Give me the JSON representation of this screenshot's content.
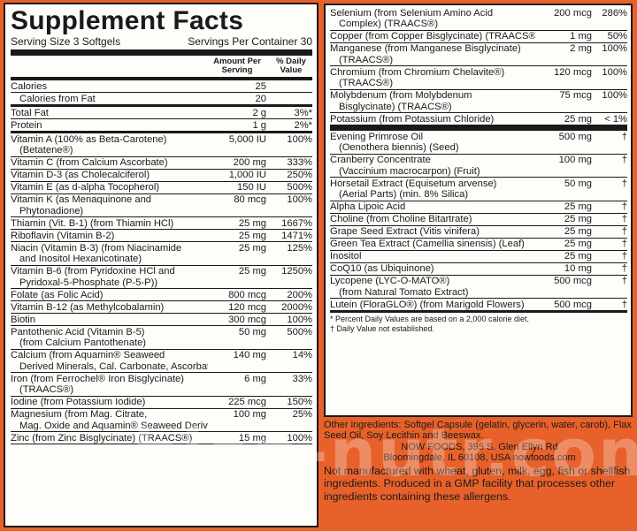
{
  "label": {
    "title": "Supplement Facts",
    "serving_size": "Serving Size 3 Softgels",
    "servings_per_container": "Servings Per Container 30",
    "col_amount": "Amount Per Serving",
    "col_dv": "% Daily Value"
  },
  "left_rows": [
    {
      "name": "Calories",
      "amount": "25",
      "dv": ""
    },
    {
      "name": "Calories from Fat",
      "amount": "20",
      "dv": "",
      "indent": true,
      "thick": true
    },
    {
      "name": "Total Fat",
      "amount": "2 g",
      "dv": "3%*"
    },
    {
      "name": "Protein",
      "amount": "1 g",
      "dv": "2%*",
      "thick": true
    },
    {
      "name": "Vitamin A (100% as Beta-Carotene)",
      "name2": "(Betatene®)",
      "amount": "5,000 IU",
      "dv": "100%"
    },
    {
      "name": "Vitamin C (from Calcium Ascorbate)",
      "amount": "200 mg",
      "dv": "333%"
    },
    {
      "name": "Vitamin D-3 (as Cholecalciferol)",
      "amount": "1,000 IU",
      "dv": "250%"
    },
    {
      "name": "Vitamin E (as d-alpha Tocopherol)",
      "amount": "150 IU",
      "dv": "500%"
    },
    {
      "name": "Vitamin K (as Menaquinone and",
      "name2": "Phytonadione)",
      "amount": "80 mcg",
      "dv": "100%"
    },
    {
      "name": "Thiamin (Vit. B-1) (from Thiamin HCl)",
      "amount": "25 mg",
      "dv": "1667%"
    },
    {
      "name": "Riboflavin (Vitamin B-2)",
      "amount": "25 mg",
      "dv": "1471%"
    },
    {
      "name": "Niacin (Vitamin B-3) (from Niacinamide",
      "name2": "and Inositol Hexanicotinate)",
      "amount": "25 mg",
      "dv": "125%"
    },
    {
      "name": "Vitamin B-6 (from Pyridoxine HCl and",
      "name2": "Pyridoxal-5-Phosphate (P-5-P))",
      "amount": "25 mg",
      "dv": "1250%"
    },
    {
      "name": "Folate (as Folic Acid)",
      "amount": "800 mcg",
      "dv": "200%"
    },
    {
      "name": "Vitamin B-12 (as Methylcobalamin)",
      "amount": "120 mcg",
      "dv": "2000%"
    },
    {
      "name": "Biotin",
      "amount": "300 mcg",
      "dv": "100%"
    },
    {
      "name": "Pantothenic Acid (Vitamin B-5)",
      "name2": "(from Calcium Pantothenate)",
      "amount": "50 mg",
      "dv": "500%"
    },
    {
      "name": "Calcium (from Aquamin® Seaweed",
      "name2": "Derived Minerals, Cal. Carbonate, Ascorbate, Pantothenate)",
      "amount": "140 mg",
      "dv": "14%"
    },
    {
      "name": "Iron (from Ferrochel® Iron Bisglycinate)",
      "name2": "(TRAACS®)",
      "amount": "6 mg",
      "dv": "33%"
    },
    {
      "name": "Iodine (from Potassium Iodide)",
      "amount": "225 mcg",
      "dv": "150%"
    },
    {
      "name": "Magnesium (from Mag. Citrate,",
      "name2": "Mag. Oxide and Aquamin® Seaweed Derived Minerals)",
      "amount": "100 mg",
      "dv": "25%"
    },
    {
      "name": "Zinc (from Zinc Bisglycinate) (TRAACS®)",
      "amount": "15 mg",
      "dv": "100%"
    }
  ],
  "right_rows_a": [
    {
      "name": "Selenium (from Selenium Amino Acid",
      "name2": "Complex) (TRAACS®)",
      "amount": "200 mcg",
      "dv": "286%"
    },
    {
      "name": "Copper (from Copper Bisglycinate) (TRAACS®)",
      "amount": "1 mg",
      "dv": "50%"
    },
    {
      "name": "Manganese (from Manganese Bisglycinate)",
      "name2": "(TRAACS®)",
      "amount": "2 mg",
      "dv": "100%"
    },
    {
      "name": "Chromium (from Chromium Chelavite®)",
      "name2": "(TRAACS®)",
      "amount": "120 mcg",
      "dv": "100%"
    },
    {
      "name": "Molybdenum (from Molybdenum",
      "name2": "Bisglycinate) (TRAACS®)",
      "amount": "75 mcg",
      "dv": "100%"
    },
    {
      "name": "Potassium (from Potassium Chloride)",
      "amount": "25 mg",
      "dv": "< 1%",
      "thick": true
    }
  ],
  "right_rows_b": [
    {
      "name": "Evening Primrose Oil",
      "name2": "(Oenothera biennis) (Seed)",
      "amount": "500 mg",
      "dv": "†"
    },
    {
      "name": "Cranberry Concentrate",
      "name2": "(Vaccinium macrocarpon) (Fruit)",
      "amount": "100 mg",
      "dv": "†"
    },
    {
      "name": "Horsetail Extract (Equisetum arvense)",
      "name2": "(Aerial Parts) (min. 8% Silica)",
      "amount": "50 mg",
      "dv": "†"
    },
    {
      "name": "Alpha Lipoic Acid",
      "amount": "25 mg",
      "dv": "†"
    },
    {
      "name": "Choline (from Choline Bitartrate)",
      "amount": "25 mg",
      "dv": "†"
    },
    {
      "name": "Grape Seed Extract (Vitis vinifera)",
      "amount": "25 mg",
      "dv": "†"
    },
    {
      "name": "Green Tea Extract (Camellia sinensis) (Leaf)",
      "amount": "25 mg",
      "dv": "†"
    },
    {
      "name": "Inositol",
      "amount": "25 mg",
      "dv": "†"
    },
    {
      "name": "CoQ10 (as Ubiquinone)",
      "amount": "10 mg",
      "dv": "†"
    },
    {
      "name": "Lycopene (LYC-O-MATO®)",
      "name2": "(from Natural Tomato Extract)",
      "amount": "500 mcg",
      "dv": "†"
    },
    {
      "name": "Lutein (FloraGLO®) (from Marigold Flowers)",
      "amount": "500 mcg",
      "dv": "†",
      "thick": true
    }
  ],
  "footnotes": {
    "percent_dv": "* Percent Daily Values are based on a 2,000 calorie diet.",
    "dagger": "† Daily Value not established."
  },
  "below": {
    "other_ingredients": "Other ingredients: Softgel Capsule (gelatin, glycerin, water, carob), Flax Seed Oil, Soy Lecithin and Beeswax.",
    "company_line1": "NOW FOODS, 395 S. Glen Ellyn Rd",
    "company_line2": "Bloomingdale, IL 60108, USA   nowfoods.com",
    "warning": "Not manufactured with wheat, gluten, milk, egg, fish or shellfish ingredients. Produced in a GMP facility that processes other ingredients containing these allergens."
  },
  "watermark": "bion-nutr.com.ua",
  "colors": {
    "background": "#e8612a",
    "panel": "#fffdfa",
    "ink": "#1a1a1a"
  }
}
